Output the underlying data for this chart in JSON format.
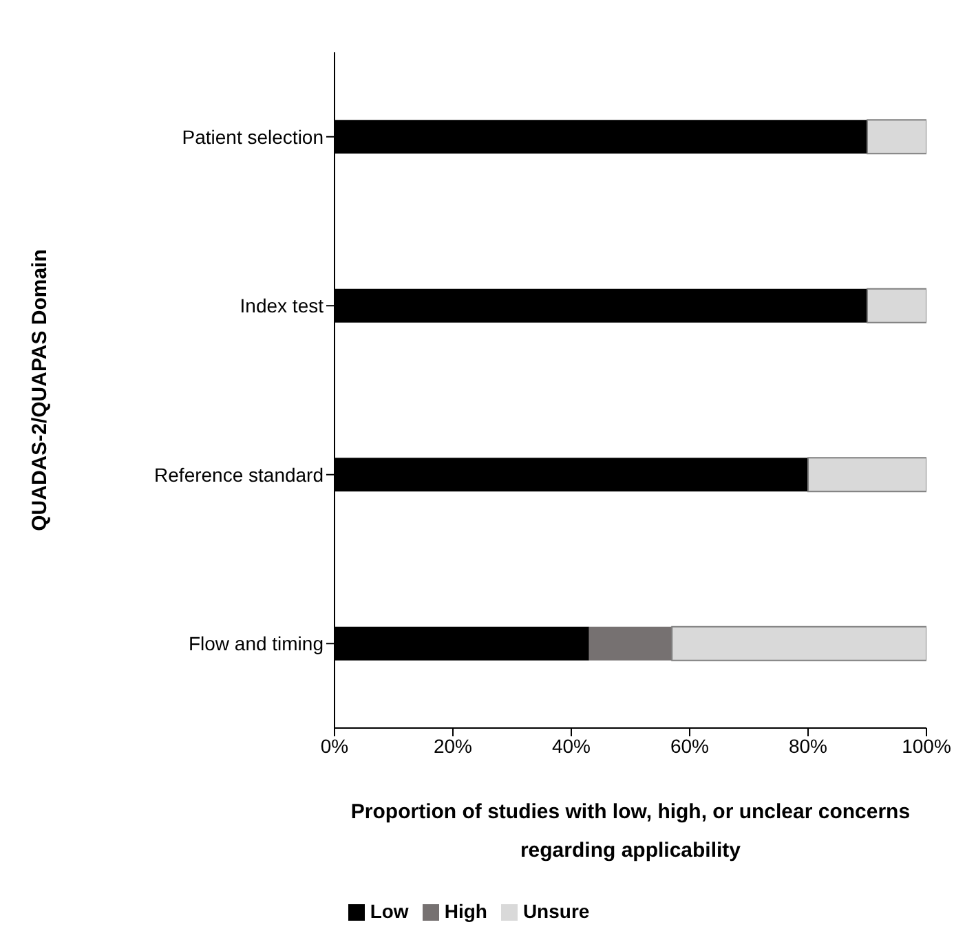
{
  "chart_data": {
    "type": "bar",
    "orientation": "horizontal",
    "stacked": true,
    "xlabel": "Proportion of studies with low, high, or unclear concerns regarding applicability",
    "ylabel": "QUADAS-2/QUAPAS Domain",
    "categories": [
      "Patient selection",
      "Index test",
      "Reference standard",
      "Flow and timing"
    ],
    "series": [
      {
        "name": "Low",
        "color": "#000000",
        "values": [
          90,
          90,
          80,
          43
        ]
      },
      {
        "name": "High",
        "color": "#767171",
        "values": [
          0,
          0,
          0,
          14
        ]
      },
      {
        "name": "Unsure",
        "color": "#d9d9d9",
        "values": [
          10,
          10,
          20,
          43
        ]
      }
    ],
    "xlim": [
      0,
      100
    ],
    "xticks": [
      {
        "value": 0,
        "label": "0%"
      },
      {
        "value": 20,
        "label": "20%"
      },
      {
        "value": 40,
        "label": "40%"
      },
      {
        "value": 60,
        "label": "60%"
      },
      {
        "value": 80,
        "label": "80%"
      },
      {
        "value": 100,
        "label": "100%"
      }
    ],
    "grid": false,
    "legend": "bottom"
  }
}
